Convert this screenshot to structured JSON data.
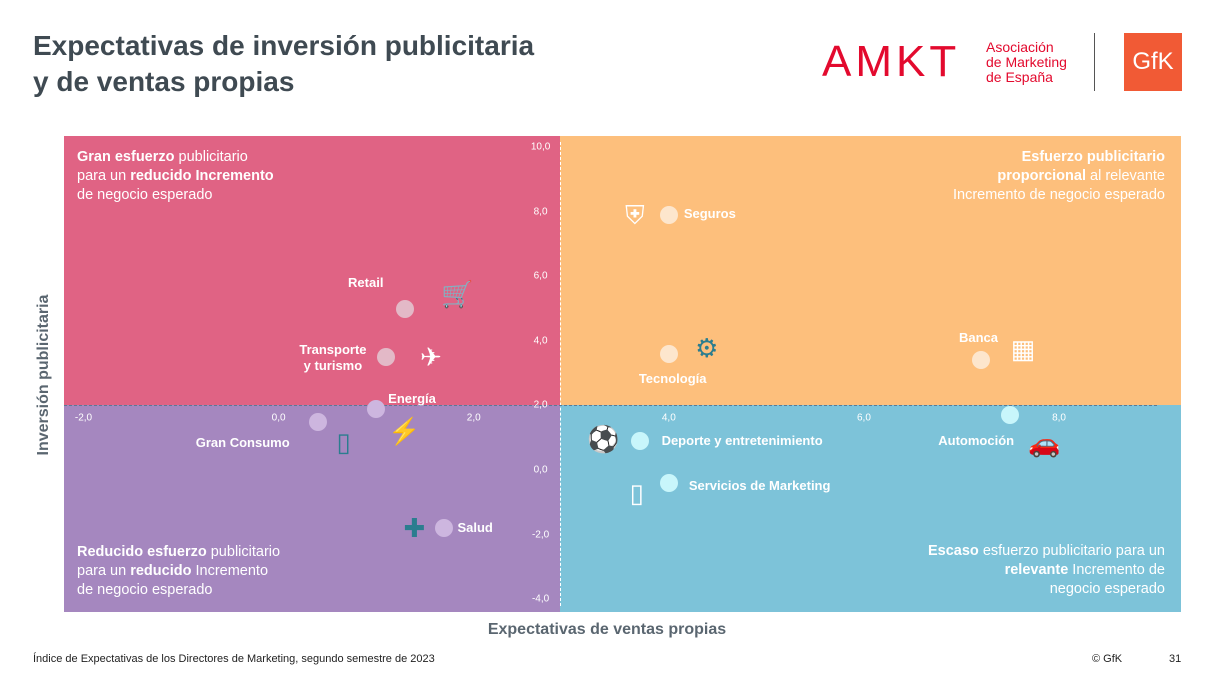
{
  "header": {
    "title_line1": "Expectativas de inversión publicitaria",
    "title_line2": "y de ventas propias"
  },
  "logos": {
    "amkt": "AMKT",
    "amkt_sub": [
      "Asociación",
      "de Marketing",
      "de España"
    ],
    "gfk": "GfK"
  },
  "colors": {
    "top_left": "#E06384",
    "top_right": "#FDBF7C",
    "bottom_left": "#A587BF",
    "bottom_right": "#7DC3D9"
  },
  "quadrants": {
    "top_left": {
      "b1": "Gran esfuerzo",
      "t1": " publicitario",
      "t2": "para un ",
      "b2": "reducido Incremento",
      "t3": "de negocio esperado"
    },
    "top_right": {
      "b1": "Esfuerzo publicitario",
      "b2": "proporcional",
      "t2": " al relevante",
      "t3": "Incremento de negocio esperado"
    },
    "bottom_left": {
      "b1": "Reducido esfuerzo",
      "t1": " publicitario",
      "t2": "para un ",
      "b2": "reducido",
      "t2b": " Incremento",
      "t3": "de negocio esperado"
    },
    "bottom_right": {
      "b1": "Escaso",
      "t1": " esfuerzo publicitario para un",
      "b2": "relevante",
      "t2": " Incremento de",
      "t3": "negocio esperado"
    }
  },
  "chart_data": {
    "type": "scatter",
    "title": "Expectativas de inversión publicitaria y de ventas propias",
    "xlabel": "Expectativas de ventas propias",
    "ylabel": "Inversión publicitaria",
    "xlim": [
      -2.2,
      9.25
    ],
    "ylim": [
      -4.4,
      10.35
    ],
    "x_cross": 2.88,
    "y_cross": 2.0,
    "x_ticks": [
      "-2,0",
      "0,0",
      "2,0",
      "4,0",
      "6,0",
      "8,0"
    ],
    "x_tick_values": [
      -2,
      0,
      2,
      4,
      6,
      8
    ],
    "y_ticks": [
      "10,0",
      "8,0",
      "6,0",
      "4,0",
      "2,0",
      "0,0",
      "-2,0",
      "-4,0"
    ],
    "y_tick_values": [
      10,
      8,
      6,
      4,
      2,
      0,
      -2,
      -4
    ],
    "grid": false,
    "points": [
      {
        "label": "Retail",
        "x": 1.3,
        "y": 5.0,
        "icon": "shopping-cart-icon"
      },
      {
        "label": "Transporte y turismo",
        "x": 1.1,
        "y": 3.5,
        "icon": "airplane-icon"
      },
      {
        "label": "Energía",
        "x": 1.0,
        "y": 1.9,
        "icon": "power-tower-icon"
      },
      {
        "label": "Gran Consumo",
        "x": 0.4,
        "y": 1.5,
        "icon": "bottle-icon"
      },
      {
        "label": "Salud",
        "x": 1.7,
        "y": -1.8,
        "icon": "medicine-icon"
      },
      {
        "label": "Seguros",
        "x": 4.0,
        "y": 7.9,
        "icon": "shield-icon"
      },
      {
        "label": "Tecnología",
        "x": 4.0,
        "y": 3.6,
        "icon": "chip-icon"
      },
      {
        "label": "Banca",
        "x": 7.2,
        "y": 3.4,
        "icon": "calculator-icon"
      },
      {
        "label": "Automoción",
        "x": 7.5,
        "y": 1.7,
        "icon": "car-icon"
      },
      {
        "label": "Deporte y entretenimiento",
        "x": 3.7,
        "y": 0.9,
        "icon": "film-reel-icon"
      },
      {
        "label": "Servicios de Marketing",
        "x": 4.0,
        "y": -0.4,
        "icon": "smartphone-icon"
      }
    ]
  },
  "footer": {
    "source": "Índice de Expectativas de los Directores de Marketing, segundo semestre de 2023",
    "copyright": "© GfK",
    "page": "31"
  }
}
